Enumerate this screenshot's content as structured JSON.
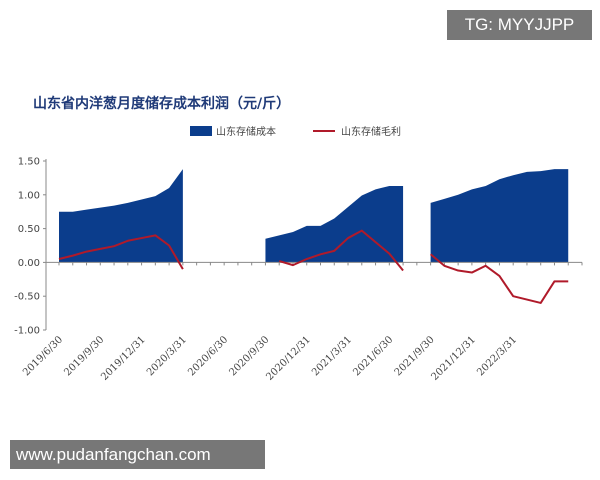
{
  "watermark_top": "TG: MYYJJPP",
  "watermark_bottom": "www.pudanfangchan.com",
  "chart_data": {
    "type": "area",
    "title": "山东省内洋葱月度储存成本利润（元/斤）",
    "ylim": [
      -1.0,
      1.5
    ],
    "yticks": [
      "1.50",
      "1.00",
      "0.50",
      "0.00",
      "-0.50",
      "-1.00"
    ],
    "ytick_values": [
      1.5,
      1.0,
      0.5,
      0.0,
      -0.5,
      -1.0
    ],
    "x_months": 36,
    "x_start": "2019-06-30",
    "xtick_labels": [
      "2019/6/30",
      "2019/9/30",
      "2019/12/31",
      "2020/3/31",
      "2020/6/30",
      "2020/9/30",
      "2020/12/31",
      "2021/3/31",
      "2021/6/30",
      "2021/9/30",
      "2021/12/31",
      "2022/3/31"
    ],
    "xtick_months": [
      0,
      3,
      6,
      9,
      12,
      15,
      18,
      21,
      24,
      27,
      30,
      33
    ],
    "legend": {
      "position": "top"
    },
    "series": [
      {
        "name": "山东存储成本",
        "kind": "area",
        "color": "#0b3d8c",
        "segments": [
          {
            "months": [
              0,
              1,
              2,
              3,
              4,
              5,
              6,
              7,
              8,
              9
            ],
            "values": [
              0.75,
              0.75,
              0.78,
              0.81,
              0.84,
              0.88,
              0.93,
              0.98,
              1.1,
              1.38
            ]
          },
          {
            "months": [
              15,
              16,
              17,
              18,
              19,
              20,
              21,
              22,
              23,
              24,
              25
            ],
            "values": [
              0.35,
              0.4,
              0.45,
              0.54,
              0.54,
              0.65,
              0.82,
              0.99,
              1.08,
              1.13,
              1.13
            ]
          },
          {
            "months": [
              27,
              28,
              29,
              30,
              31,
              32,
              33,
              34,
              35,
              36,
              37
            ],
            "values": [
              0.88,
              0.94,
              1.0,
              1.08,
              1.13,
              1.23,
              1.29,
              1.34,
              1.35,
              1.38,
              1.38
            ]
          }
        ]
      },
      {
        "name": "山东存储毛利",
        "kind": "line",
        "color": "#b01a2a",
        "segments": [
          {
            "months": [
              0,
              1,
              2,
              3,
              4,
              5,
              6,
              7,
              8,
              9
            ],
            "values": [
              0.05,
              0.1,
              0.16,
              0.2,
              0.24,
              0.32,
              0.36,
              0.4,
              0.25,
              -0.1
            ]
          },
          {
            "months": [
              16,
              17,
              18,
              19,
              20,
              21,
              22,
              23,
              24,
              25
            ],
            "values": [
              0.02,
              -0.04,
              0.05,
              0.12,
              0.17,
              0.36,
              0.47,
              0.3,
              0.13,
              -0.12
            ]
          },
          {
            "months": [
              27,
              28,
              29,
              30,
              31,
              32,
              33,
              34,
              35,
              36,
              37
            ],
            "values": [
              0.12,
              -0.05,
              -0.12,
              -0.15,
              -0.05,
              -0.2,
              -0.5,
              -0.55,
              -0.6,
              -0.28,
              -0.28
            ]
          }
        ]
      }
    ]
  }
}
